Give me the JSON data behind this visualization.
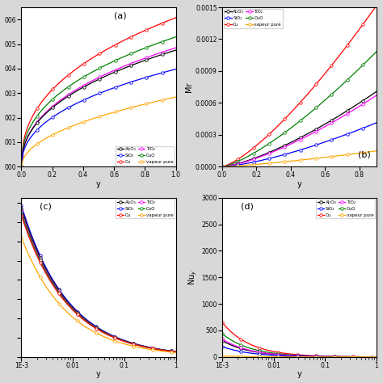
{
  "labels": [
    "Al₂O₃",
    "SiO₂",
    "Cu",
    "TiO₂",
    "CuO",
    "vapeur pure"
  ],
  "colors_ordered": {
    "Al2O3": "black",
    "SiO2": "blue",
    "Cu": "red",
    "TiO2": "magenta",
    "CuO": "green",
    "vapeur": "orange"
  },
  "panel_labels": [
    "(a)",
    "(b)",
    "(c)",
    "(d)"
  ],
  "ylabel_b": "Mr",
  "ylabel_d": "Nu$_y$",
  "xlabel": "y"
}
